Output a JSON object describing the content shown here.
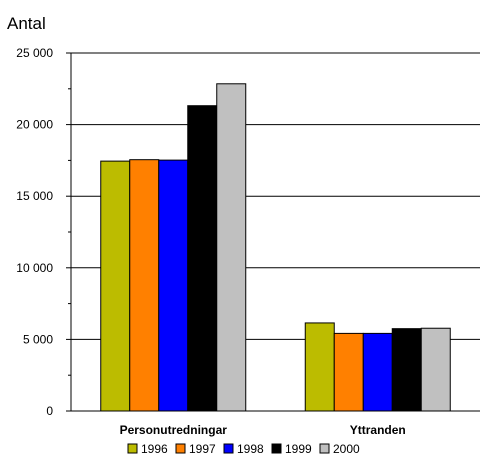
{
  "chart_data": {
    "type": "bar",
    "ylabel": "Antal",
    "xlabel": "",
    "title": "",
    "ylim": [
      0,
      25000
    ],
    "yticks": [
      0,
      5000,
      10000,
      15000,
      20000,
      25000
    ],
    "ytick_labels": [
      "0",
      "5 000",
      "10 000",
      "15 000",
      "20 000",
      "25 000"
    ],
    "grid": "horizontal major",
    "legend_position": "bottom",
    "categories": [
      "Personutredningar",
      "Yttranden"
    ],
    "series": [
      {
        "name": "1996",
        "color": "#bcbc00",
        "values": [
          17450,
          6150
        ]
      },
      {
        "name": "1997",
        "color": "#ff8000",
        "values": [
          17550,
          5420
        ]
      },
      {
        "name": "1998",
        "color": "#0000ff",
        "values": [
          17520,
          5420
        ]
      },
      {
        "name": "1999",
        "color": "#000000",
        "values": [
          21320,
          5750
        ]
      },
      {
        "name": "2000",
        "color": "#c0c0c0",
        "values": [
          22850,
          5780
        ]
      }
    ]
  }
}
